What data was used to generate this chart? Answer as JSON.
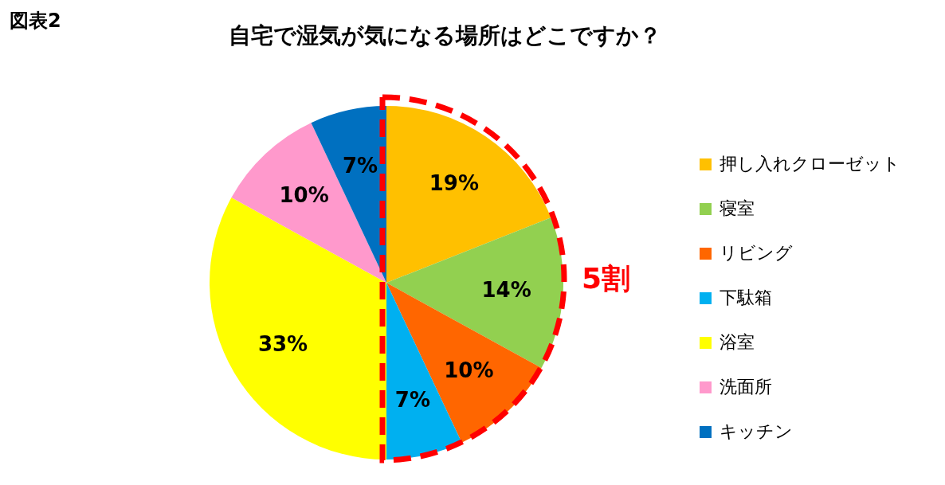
{
  "chart_data": {
    "type": "pie",
    "title": "自宅で湿気が気になる場所はどこですか？",
    "categories": [
      "押し入れクローゼット",
      "寝室",
      "リビング",
      "下駄箱",
      "浴室",
      "洗面所",
      "キッチン"
    ],
    "values": [
      19,
      14,
      10,
      7,
      33,
      10,
      7
    ],
    "value_labels": [
      "19%",
      "14%",
      "10%",
      "7%",
      "33%",
      "10%",
      "7%"
    ],
    "colors": [
      "#ffc000",
      "#92d050",
      "#ff6600",
      "#00b0f0",
      "#ffff00",
      "#ff99cc",
      "#0070c0"
    ],
    "legend": "right",
    "annotations": [
      "図表2",
      "5割"
    ]
  }
}
